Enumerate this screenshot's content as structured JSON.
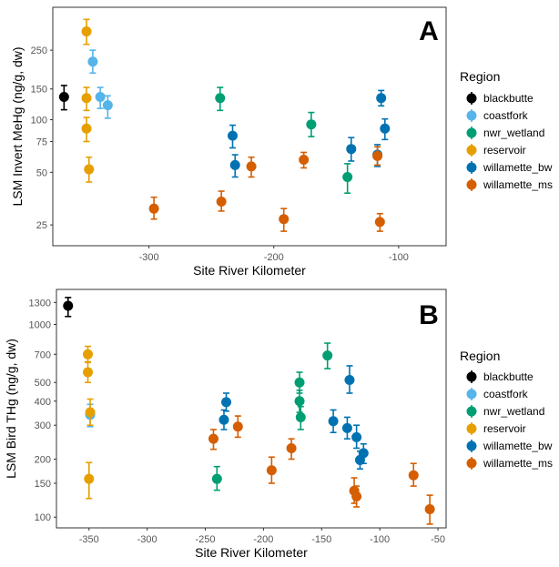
{
  "colors": {
    "blackbutte": "#000000",
    "coastfork": "#56B4E9",
    "nwr_wetland": "#009E73",
    "reservoir": "#E69F00",
    "willamette_bw": "#0072B2",
    "willamette_ms": "#D55E00"
  },
  "chart_data": [
    {
      "type": "scatter",
      "panel_letter": "A",
      "xlabel": "Site River Kilometer",
      "ylabel": "LSM Invert MeHg (ng/g, dw)",
      "y_scale": "log",
      "xlim": [
        -377,
        -62
      ],
      "ylim": [
        19,
        440
      ],
      "x_ticks": [
        -300,
        -200,
        -100
      ],
      "x_tick_labels": [
        "-300",
        "-200",
        "-100"
      ],
      "y_ticks": [
        25,
        50,
        75,
        100,
        150,
        250
      ],
      "y_tick_labels": [
        "25",
        "50",
        "75",
        "100",
        "150",
        "250"
      ],
      "grid": false,
      "legend_title": "Region",
      "legend_position": "right",
      "series": [
        {
          "name": "blackbutte",
          "points": [
            {
              "x": -368,
              "y": 135,
              "lo": 114,
              "hi": 157
            }
          ]
        },
        {
          "name": "coastfork",
          "points": [
            {
              "x": -345,
              "y": 215,
              "lo": 185,
              "hi": 250
            },
            {
              "x": -339,
              "y": 135,
              "lo": 116,
              "hi": 153
            },
            {
              "x": -333,
              "y": 121,
              "lo": 102,
              "hi": 137
            }
          ]
        },
        {
          "name": "nwr_wetland",
          "points": [
            {
              "x": -243,
              "y": 133,
              "lo": 113,
              "hi": 153
            },
            {
              "x": -170,
              "y": 94,
              "lo": 80,
              "hi": 110
            },
            {
              "x": -141,
              "y": 47,
              "lo": 38,
              "hi": 56
            }
          ]
        },
        {
          "name": "reservoir",
          "points": [
            {
              "x": -350,
              "y": 320,
              "lo": 270,
              "hi": 375
            },
            {
              "x": -350,
              "y": 133,
              "lo": 113,
              "hi": 153
            },
            {
              "x": -350,
              "y": 89,
              "lo": 75,
              "hi": 103
            },
            {
              "x": -348,
              "y": 52,
              "lo": 44,
              "hi": 61
            }
          ]
        },
        {
          "name": "willamette_bw",
          "points": [
            {
              "x": -233,
              "y": 81,
              "lo": 69,
              "hi": 93
            },
            {
              "x": -231,
              "y": 55,
              "lo": 47,
              "hi": 63
            },
            {
              "x": -138,
              "y": 68,
              "lo": 58,
              "hi": 79
            },
            {
              "x": -117,
              "y": 63,
              "lo": 54,
              "hi": 72
            },
            {
              "x": -114,
              "y": 133,
              "lo": 120,
              "hi": 147
            },
            {
              "x": -111,
              "y": 89,
              "lo": 77,
              "hi": 101
            }
          ]
        },
        {
          "name": "willamette_ms",
          "points": [
            {
              "x": -296,
              "y": 31,
              "lo": 27,
              "hi": 36
            },
            {
              "x": -242,
              "y": 34,
              "lo": 30,
              "hi": 39
            },
            {
              "x": -218,
              "y": 54,
              "lo": 47,
              "hi": 61
            },
            {
              "x": -192,
              "y": 27,
              "lo": 23,
              "hi": 31
            },
            {
              "x": -176,
              "y": 59,
              "lo": 53,
              "hi": 65
            },
            {
              "x": -117,
              "y": 62,
              "lo": 55,
              "hi": 70
            },
            {
              "x": -115,
              "y": 26,
              "lo": 23,
              "hi": 29
            }
          ]
        }
      ]
    },
    {
      "type": "scatter",
      "panel_letter": "B",
      "xlabel": "Site River Kilometer",
      "ylabel": "LSM Bird THg (ng/g, dw)",
      "y_scale": "log",
      "xlim": [
        -378,
        -43
      ],
      "ylim": [
        88,
        1520
      ],
      "x_ticks": [
        -350,
        -300,
        -250,
        -200,
        -150,
        -100,
        -50
      ],
      "x_tick_labels": [
        "-350",
        "-300",
        "-250",
        "-200",
        "-150",
        "-100",
        "-50"
      ],
      "y_ticks": [
        100,
        150,
        200,
        300,
        400,
        500,
        700,
        1000,
        1300
      ],
      "y_tick_labels": [
        "100",
        "150",
        "200",
        "300",
        "400",
        "500",
        "700",
        "1000",
        "1300"
      ],
      "grid": false,
      "legend_title": "Region",
      "legend_position": "right",
      "series": [
        {
          "name": "blackbutte",
          "points": [
            {
              "x": -368,
              "y": 1250,
              "lo": 1100,
              "hi": 1380
            }
          ]
        },
        {
          "name": "coastfork",
          "points": [
            {
              "x": -349,
              "y": 340,
              "lo": 295,
              "hi": 385
            }
          ]
        },
        {
          "name": "nwr_wetland",
          "points": [
            {
              "x": -240,
              "y": 158,
              "lo": 138,
              "hi": 183
            },
            {
              "x": -169,
              "y": 500,
              "lo": 440,
              "hi": 565
            },
            {
              "x": -169,
              "y": 400,
              "lo": 350,
              "hi": 455
            },
            {
              "x": -168,
              "y": 330,
              "lo": 285,
              "hi": 375
            },
            {
              "x": -145,
              "y": 690,
              "lo": 590,
              "hi": 800
            }
          ]
        },
        {
          "name": "reservoir",
          "points": [
            {
              "x": -351,
              "y": 700,
              "lo": 640,
              "hi": 770
            },
            {
              "x": -351,
              "y": 565,
              "lo": 500,
              "hi": 635
            },
            {
              "x": -349,
              "y": 350,
              "lo": 300,
              "hi": 410
            },
            {
              "x": -350,
              "y": 158,
              "lo": 125,
              "hi": 192
            }
          ]
        },
        {
          "name": "willamette_bw",
          "points": [
            {
              "x": -232,
              "y": 395,
              "lo": 355,
              "hi": 440
            },
            {
              "x": -234,
              "y": 320,
              "lo": 285,
              "hi": 360
            },
            {
              "x": -140,
              "y": 315,
              "lo": 275,
              "hi": 360
            },
            {
              "x": -128,
              "y": 290,
              "lo": 255,
              "hi": 330
            },
            {
              "x": -126,
              "y": 515,
              "lo": 440,
              "hi": 610
            },
            {
              "x": -120,
              "y": 260,
              "lo": 228,
              "hi": 300
            },
            {
              "x": -117,
              "y": 198,
              "lo": 178,
              "hi": 220
            },
            {
              "x": -114,
              "y": 215,
              "lo": 190,
              "hi": 240
            }
          ]
        },
        {
          "name": "willamette_ms",
          "points": [
            {
              "x": -243,
              "y": 255,
              "lo": 225,
              "hi": 285
            },
            {
              "x": -222,
              "y": 295,
              "lo": 260,
              "hi": 335
            },
            {
              "x": -193,
              "y": 175,
              "lo": 150,
              "hi": 205
            },
            {
              "x": -176,
              "y": 228,
              "lo": 200,
              "hi": 255
            },
            {
              "x": -122,
              "y": 137,
              "lo": 118,
              "hi": 160
            },
            {
              "x": -120,
              "y": 128,
              "lo": 113,
              "hi": 145
            },
            {
              "x": -71,
              "y": 165,
              "lo": 145,
              "hi": 190
            },
            {
              "x": -57,
              "y": 110,
              "lo": 92,
              "hi": 130
            }
          ]
        }
      ]
    }
  ]
}
